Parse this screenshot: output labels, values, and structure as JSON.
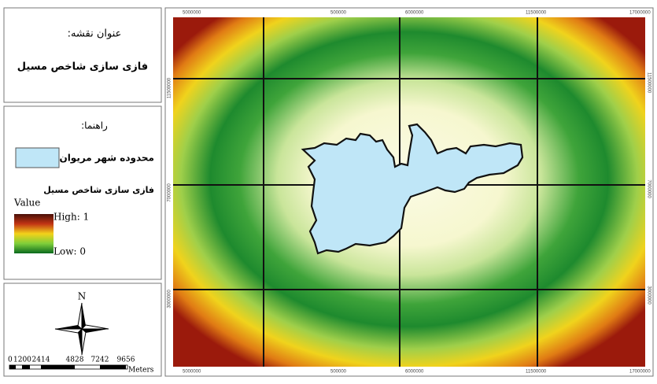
{
  "legend_panel": {
    "title_label": "عنوان نقشه:",
    "title": "فازی سازی شاخص مسیل",
    "legend_heading": "راهنما:",
    "boundary_label": "محدوده شهر مریوان",
    "layer_name": "فازی سازی شاخص مسیل",
    "value_label": "Value",
    "high_label": "High: 1",
    "low_label": "Low: 0"
  },
  "north_arrow": {
    "label": "N"
  },
  "scale_bar": {
    "labels": [
      0,
      1200,
      2414,
      4828,
      7242,
      9656
    ],
    "unit": "Meters"
  },
  "map_frame": {
    "top_labels": [
      5000000,
      500000,
      6000000,
      11500000,
      17000000
    ],
    "bottom_labels": [
      5000000,
      500000,
      6000000,
      11500000,
      17000000
    ],
    "left_labels": [
      11500000,
      7000000,
      3000000
    ],
    "right_labels": [
      11500000,
      7000000,
      3000000
    ]
  }
}
